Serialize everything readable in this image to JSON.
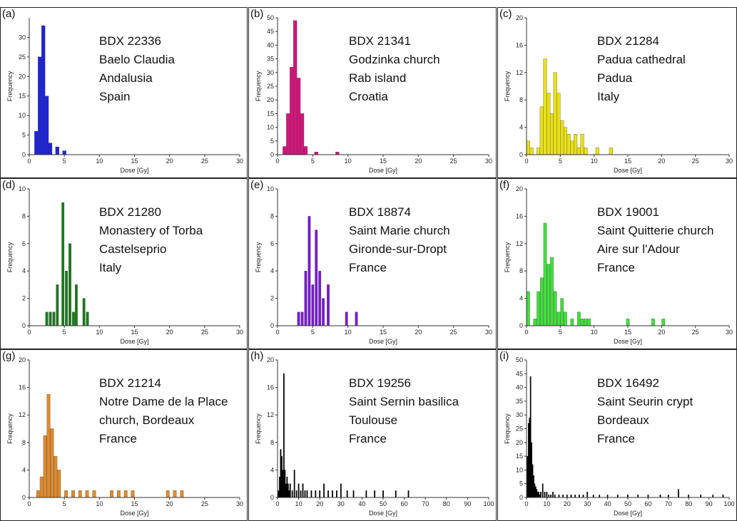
{
  "chart_data": [
    {
      "type": "bar",
      "panel": "(a)",
      "sample_lines": [
        "BDX 22336",
        "Baelo Claudia",
        "Andalusia",
        "Spain"
      ],
      "color": "#1f24d6",
      "xlabel": "Dose [Gy]",
      "ylabel": "Frequency",
      "xlim": [
        0,
        30
      ],
      "ylim": [
        0,
        35
      ],
      "xticks": [
        0,
        5,
        10,
        15,
        20,
        25,
        30
      ],
      "yticks": [
        0,
        5,
        10,
        15,
        20,
        25,
        30
      ],
      "bin_width": 0.5,
      "bins": [
        [
          1.0,
          6
        ],
        [
          1.5,
          25
        ],
        [
          2.0,
          33
        ],
        [
          2.5,
          15
        ],
        [
          3.0,
          3
        ],
        [
          4.0,
          2
        ],
        [
          5.0,
          1
        ]
      ]
    },
    {
      "type": "bar",
      "panel": "(b)",
      "sample_lines": [
        "BDX 21341",
        "Godzinka church",
        "Rab island",
        "Croatia"
      ],
      "color": "#d0177a",
      "xlabel": "Dose [Gy]",
      "ylabel": "Frequency",
      "xlim": [
        0,
        30
      ],
      "ylim": [
        0,
        50
      ],
      "xticks": [
        0,
        5,
        10,
        15,
        20,
        25,
        30
      ],
      "yticks": [
        0,
        5,
        10,
        15,
        20,
        25,
        30,
        35,
        40,
        45,
        50
      ],
      "bin_width": 0.5,
      "bins": [
        [
          1.0,
          3
        ],
        [
          1.5,
          15
        ],
        [
          2.0,
          32
        ],
        [
          2.5,
          49
        ],
        [
          3.0,
          28
        ],
        [
          3.5,
          15
        ],
        [
          4.0,
          3
        ],
        [
          5.5,
          1
        ],
        [
          8.5,
          1
        ]
      ]
    },
    {
      "type": "bar",
      "panel": "(c)",
      "sample_lines": [
        "BDX 21284",
        "Padua cathedral",
        "Padua",
        "Italy"
      ],
      "color": "#e8e01a",
      "xlabel": "Dose [Gy]",
      "ylabel": "Frequency",
      "xlim": [
        0,
        30
      ],
      "ylim": [
        0,
        20
      ],
      "xticks": [
        0,
        5,
        10,
        15,
        20,
        25,
        30
      ],
      "yticks": [
        0,
        4,
        8,
        12,
        16,
        20
      ],
      "bin_width": 0.5,
      "bins": [
        [
          0.25,
          2
        ],
        [
          0.75,
          1
        ],
        [
          1.75,
          1
        ],
        [
          2.25,
          7
        ],
        [
          2.75,
          14
        ],
        [
          3.25,
          9
        ],
        [
          3.75,
          6
        ],
        [
          4.25,
          12
        ],
        [
          4.75,
          9
        ],
        [
          5.25,
          5
        ],
        [
          5.75,
          4
        ],
        [
          6.25,
          3
        ],
        [
          6.75,
          2
        ],
        [
          7.25,
          3
        ],
        [
          7.75,
          1
        ],
        [
          8.25,
          3
        ],
        [
          8.75,
          1
        ],
        [
          10.5,
          1
        ],
        [
          12.5,
          1
        ]
      ]
    },
    {
      "type": "bar",
      "panel": "(d)",
      "sample_lines": [
        "BDX 21280",
        "Monastery of Torba",
        "Castelseprio",
        "Italy"
      ],
      "color": "#1a7b1a",
      "xlabel": "Dose [Gy]",
      "ylabel": "Frequency",
      "xlim": [
        0,
        30
      ],
      "ylim": [
        0,
        10
      ],
      "xticks": [
        0,
        5,
        10,
        15,
        20,
        25,
        30
      ],
      "yticks": [
        0,
        2,
        4,
        6,
        8,
        10
      ],
      "bin_width": 0.35,
      "bins": [
        [
          2.5,
          1
        ],
        [
          3.0,
          1
        ],
        [
          3.5,
          1
        ],
        [
          4.0,
          3
        ],
        [
          4.8,
          9
        ],
        [
          5.3,
          4
        ],
        [
          5.8,
          6
        ],
        [
          6.3,
          1
        ],
        [
          6.7,
          3
        ],
        [
          7.8,
          2
        ],
        [
          8.3,
          1
        ]
      ]
    },
    {
      "type": "bar",
      "panel": "(e)",
      "sample_lines": [
        "BDX 18874",
        "Saint Marie church",
        "Gironde-sur-Dropt",
        "France"
      ],
      "color": "#7a18d6",
      "xlabel": "Dose [Gy]",
      "ylabel": "Frequency",
      "xlim": [
        0,
        30
      ],
      "ylim": [
        0,
        10
      ],
      "xticks": [
        0,
        5,
        10,
        15,
        20,
        25,
        30
      ],
      "yticks": [
        0,
        2,
        4,
        6,
        8,
        10
      ],
      "bin_width": 0.35,
      "bins": [
        [
          3.0,
          1
        ],
        [
          3.5,
          1
        ],
        [
          4.0,
          4
        ],
        [
          4.5,
          8
        ],
        [
          5.0,
          3
        ],
        [
          5.5,
          7
        ],
        [
          6.0,
          4
        ],
        [
          6.5,
          2
        ],
        [
          7.2,
          3
        ],
        [
          9.8,
          1
        ],
        [
          11.2,
          1
        ]
      ]
    },
    {
      "type": "bar",
      "panel": "(f)",
      "sample_lines": [
        "BDX 19001",
        "Saint Quitterie church",
        "Aire sur l'Adour",
        "France"
      ],
      "color": "#3fe03a",
      "xlabel": "Dose [Gy]",
      "ylabel": "Frequency",
      "xlim": [
        0,
        30
      ],
      "ylim": [
        0,
        20
      ],
      "xticks": [
        0,
        5,
        10,
        15,
        20,
        25,
        30
      ],
      "yticks": [
        0,
        4,
        8,
        12,
        16,
        20
      ],
      "bin_width": 0.45,
      "bins": [
        [
          0.25,
          5
        ],
        [
          1.25,
          1
        ],
        [
          1.75,
          5
        ],
        [
          2.25,
          7
        ],
        [
          2.75,
          15
        ],
        [
          3.25,
          9
        ],
        [
          3.75,
          10
        ],
        [
          4.25,
          5
        ],
        [
          4.75,
          2
        ],
        [
          5.25,
          4
        ],
        [
          5.75,
          2
        ],
        [
          6.75,
          1
        ],
        [
          7.75,
          2
        ],
        [
          8.25,
          1
        ],
        [
          8.75,
          1
        ],
        [
          9.25,
          1
        ],
        [
          15.0,
          1
        ],
        [
          18.75,
          1
        ],
        [
          20.25,
          1
        ]
      ]
    },
    {
      "type": "bar",
      "panel": "(g)",
      "sample_lines": [
        "BDX 21214",
        "Notre Dame de la Place",
        "church, Bordeaux",
        "France"
      ],
      "color": "#e08a2a",
      "xlabel": "Dose [Gy]",
      "ylabel": "Frequency",
      "xlim": [
        0,
        30
      ],
      "ylim": [
        0,
        20
      ],
      "xticks": [
        0,
        5,
        10,
        15,
        20,
        25,
        30
      ],
      "yticks": [
        0,
        4,
        8,
        12,
        16,
        20
      ],
      "bin_width": 0.45,
      "bins": [
        [
          1.25,
          1
        ],
        [
          1.75,
          3
        ],
        [
          2.25,
          9
        ],
        [
          2.75,
          15
        ],
        [
          3.25,
          10
        ],
        [
          3.75,
          6
        ],
        [
          4.25,
          4
        ],
        [
          5.25,
          1
        ],
        [
          6.25,
          1
        ],
        [
          7.25,
          1
        ],
        [
          8.25,
          1
        ],
        [
          9.25,
          1
        ],
        [
          11.75,
          1
        ],
        [
          12.75,
          1
        ],
        [
          13.75,
          1
        ],
        [
          14.75,
          1
        ],
        [
          19.75,
          1
        ],
        [
          20.75,
          1
        ],
        [
          21.75,
          1
        ]
      ]
    },
    {
      "type": "bar",
      "panel": "(h)",
      "sample_lines": [
        "BDX 19256",
        "Saint Sernin basilica",
        "Toulouse",
        "France"
      ],
      "color": "#000000",
      "xlabel": "Dose [Gy]",
      "ylabel": "Frequency",
      "xlim": [
        0,
        100
      ],
      "ylim": [
        0,
        20
      ],
      "xticks": [
        0,
        10,
        20,
        30,
        40,
        50,
        60,
        70,
        80,
        90,
        100
      ],
      "yticks": [
        0,
        4,
        8,
        12,
        16,
        20
      ],
      "bin_width": 0.5,
      "bins": [
        [
          0.5,
          1
        ],
        [
          1.0,
          3
        ],
        [
          1.5,
          7
        ],
        [
          2.0,
          6
        ],
        [
          2.5,
          4
        ],
        [
          3.0,
          18
        ],
        [
          3.5,
          4
        ],
        [
          4.0,
          2
        ],
        [
          4.5,
          3
        ],
        [
          5.0,
          2
        ],
        [
          5.5,
          1
        ],
        [
          6.0,
          2
        ],
        [
          7.0,
          1
        ],
        [
          8.0,
          4
        ],
        [
          9.0,
          1
        ],
        [
          10.0,
          2
        ],
        [
          11.0,
          1
        ],
        [
          12.0,
          2
        ],
        [
          13.0,
          1
        ],
        [
          14.0,
          1
        ],
        [
          16.0,
          1
        ],
        [
          18.0,
          1
        ],
        [
          20.0,
          1
        ],
        [
          22.0,
          2
        ],
        [
          24.0,
          1
        ],
        [
          26.0,
          1
        ],
        [
          28.0,
          1
        ],
        [
          30.0,
          2
        ],
        [
          33.0,
          1
        ],
        [
          36.0,
          1
        ],
        [
          42.0,
          1
        ],
        [
          46.0,
          1
        ],
        [
          50.0,
          1
        ],
        [
          56.0,
          1
        ],
        [
          62.0,
          1
        ]
      ]
    },
    {
      "type": "bar",
      "panel": "(i)",
      "sample_lines": [
        "BDX 16492",
        "Saint Seurin crypt",
        "Bordeaux",
        "France"
      ],
      "color": "#000000",
      "xlabel": "Dose [Gy]",
      "ylabel": "Frequency",
      "xlim": [
        0,
        100
      ],
      "ylim": [
        0,
        50
      ],
      "xticks": [
        0,
        10,
        20,
        30,
        40,
        50,
        60,
        70,
        80,
        90,
        100
      ],
      "yticks": [
        0,
        5,
        10,
        15,
        20,
        25,
        30,
        35,
        40,
        45,
        50
      ],
      "bin_width": 0.5,
      "bins": [
        [
          0.5,
          15
        ],
        [
          1.0,
          27
        ],
        [
          1.5,
          29
        ],
        [
          2.0,
          44
        ],
        [
          2.5,
          20
        ],
        [
          3.0,
          12
        ],
        [
          3.5,
          8
        ],
        [
          4.0,
          5
        ],
        [
          4.5,
          4
        ],
        [
          5.0,
          3
        ],
        [
          5.5,
          2
        ],
        [
          6.0,
          2
        ],
        [
          6.5,
          1
        ],
        [
          7.0,
          2
        ],
        [
          8.0,
          5
        ],
        [
          9.0,
          2
        ],
        [
          10.0,
          2
        ],
        [
          11.0,
          1
        ],
        [
          12.0,
          1
        ],
        [
          13.0,
          2
        ],
        [
          14.0,
          1
        ],
        [
          16.0,
          1
        ],
        [
          18.0,
          1
        ],
        [
          20.0,
          1
        ],
        [
          22.0,
          1
        ],
        [
          24.0,
          1
        ],
        [
          26.0,
          1
        ],
        [
          28.0,
          1
        ],
        [
          30.0,
          2
        ],
        [
          33.0,
          1
        ],
        [
          36.0,
          1
        ],
        [
          40.0,
          1
        ],
        [
          45.0,
          1
        ],
        [
          50.0,
          1
        ],
        [
          55.0,
          1
        ],
        [
          60.0,
          1
        ],
        [
          66.0,
          1
        ],
        [
          70.0,
          1
        ],
        [
          75.0,
          3
        ],
        [
          80.0,
          1
        ],
        [
          86.0,
          1
        ],
        [
          92.0,
          1
        ],
        [
          97.0,
          1
        ]
      ]
    }
  ]
}
